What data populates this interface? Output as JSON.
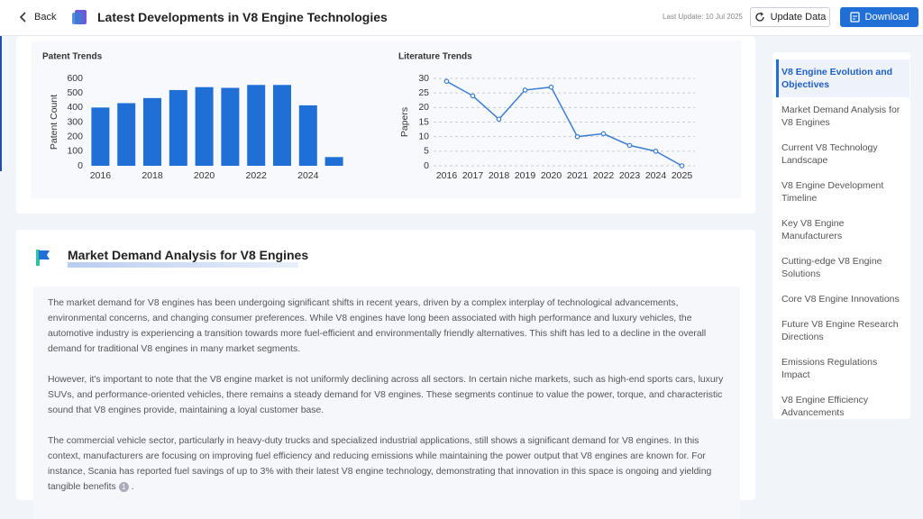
{
  "header": {
    "back": "Back",
    "title": "Latest Developments in V8 Engine Technologies",
    "last_update": "Last Update: 10 Jul 2025",
    "update_button": "Update Data",
    "download_button": "Download"
  },
  "chart_data": [
    {
      "type": "bar",
      "title": "Patent Trends",
      "y_label": "Patent Count",
      "categories": [
        "2016",
        null,
        "2018",
        null,
        "2020",
        null,
        "2022",
        null,
        "2024",
        null
      ],
      "values": [
        400,
        430,
        465,
        520,
        540,
        535,
        555,
        555,
        415,
        60
      ],
      "color": "#1f6fd6",
      "ylim": [
        0,
        600
      ],
      "yticks": [
        0,
        100,
        200,
        300,
        400,
        500,
        600
      ],
      "grid": false
    },
    {
      "type": "line",
      "title": "Literature Trends",
      "y_label": "Papers",
      "categories": [
        "2016",
        "2017",
        "2018",
        "2019",
        "2020",
        "2021",
        "2022",
        "2023",
        "2024",
        "2025"
      ],
      "values": [
        29,
        24,
        16,
        26,
        27,
        10,
        11,
        7,
        5,
        0
      ],
      "color": "#3b7ed4",
      "ylim": [
        0,
        30
      ],
      "yticks": [
        0,
        5,
        10,
        15,
        20,
        25,
        30
      ],
      "grid": true
    }
  ],
  "section": {
    "title": "Market Demand Analysis for V8 Engines",
    "paragraphs": [
      {
        "text": "The market demand for V8 engines has been undergoing significant shifts in recent years, driven by a complex interplay of technological advancements, environmental concerns, and changing consumer preferences. While V8 engines have long been associated with high performance and luxury vehicles, the automotive industry is experiencing a transition towards more fuel-efficient and environmentally friendly alternatives. This shift has led to a decline in the overall demand for traditional V8 engines in many market segments."
      },
      {
        "text": "However, it's important to note that the V8 engine market is not uniformly declining across all sectors. In certain niche markets, such as high-end sports cars, luxury SUVs, and performance-oriented vehicles, there remains a steady demand for V8 engines. These segments continue to value the power, torque, and characteristic sound that V8 engines provide, maintaining a loyal customer base."
      },
      {
        "text": "The commercial vehicle sector, particularly in heavy-duty trucks and specialized industrial applications, still shows a significant demand for V8 engines. In this context, manufacturers are focusing on improving fuel efficiency and reducing emissions while maintaining the power output that V8 engines are known for. For instance, Scania has reported fuel savings of up to 3% with their latest V8 engine technology, demonstrating that innovation in this space is ongoing and yielding tangible benefits",
        "citation": "1",
        "end": "."
      }
    ]
  },
  "nav": {
    "active": 0,
    "items": [
      "V8 Engine Evolution and Objectives",
      "Market Demand Analysis for V8 Engines",
      "Current V8 Technology Landscape",
      "V8 Engine Development Timeline",
      "Key V8 Engine Manufacturers",
      "Cutting-edge V8 Engine Solutions",
      "Core V8 Engine Innovations",
      "Future V8 Engine Research Directions",
      "Emissions Regulations Impact",
      "V8 Engine Efficiency Advancements"
    ]
  }
}
